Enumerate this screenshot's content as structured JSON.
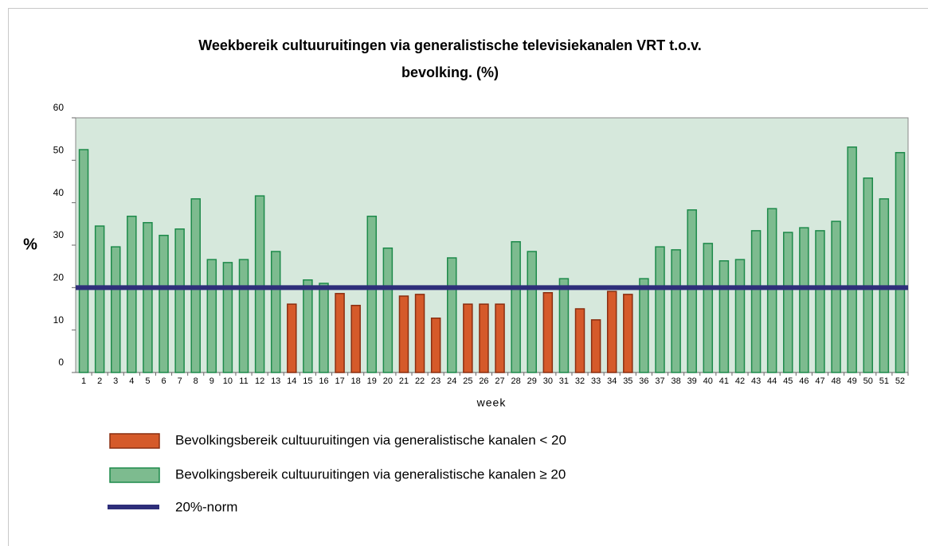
{
  "chart_data": {
    "type": "bar",
    "title": "Weekbereik cultuuruitingen via generalistische televisiekanalen VRT  t.o.v.",
    "subtitle": "bevolking. (%)",
    "x_label": "week",
    "y_label": "%",
    "categories": [
      "1",
      "2",
      "3",
      "4",
      "5",
      "6",
      "7",
      "8",
      "9",
      "10",
      "11",
      "12",
      "13",
      "14",
      "15",
      "16",
      "17",
      "18",
      "19",
      "20",
      "21",
      "22",
      "23",
      "24",
      "25",
      "26",
      "27",
      "28",
      "29",
      "30",
      "31",
      "32",
      "33",
      "34",
      "35",
      "36",
      "37",
      "38",
      "39",
      "40",
      "41",
      "42",
      "43",
      "44",
      "45",
      "46",
      "47",
      "48",
      "49",
      "50",
      "51",
      "52"
    ],
    "series": [
      {
        "name": "Bevolkingsbereik cultuuruitingen via generalistische kanalen < 20",
        "color": "#d55a2a",
        "values": [
          null,
          null,
          null,
          null,
          null,
          null,
          null,
          null,
          null,
          null,
          null,
          null,
          null,
          16.1,
          null,
          null,
          18.6,
          15.8,
          null,
          null,
          18,
          18.4,
          12.8,
          null,
          16.1,
          16.1,
          16.1,
          null,
          null,
          18.8,
          null,
          15,
          12.4,
          19.1,
          18.4,
          null,
          null,
          null,
          null,
          null,
          null,
          null,
          null,
          null,
          null,
          null,
          null,
          null,
          null,
          null,
          null,
          null
        ]
      },
      {
        "name": "Bevolkingsbereik cultuuruitingen via generalistische kanalen ≥ 20",
        "color": "#7dbb8f",
        "values": [
          52.5,
          34.5,
          29.6,
          36.8,
          35.3,
          32.3,
          33.8,
          40.9,
          26.6,
          25.9,
          26.6,
          41.6,
          28.5,
          null,
          21.8,
          21,
          null,
          null,
          36.8,
          29.3,
          null,
          null,
          null,
          27,
          null,
          null,
          null,
          30.8,
          28.5,
          null,
          22.1,
          null,
          null,
          null,
          null,
          22.1,
          29.6,
          28.9,
          38.3,
          30.4,
          26.3,
          26.6,
          33.4,
          38.6,
          33,
          34.1,
          33.4,
          35.6,
          53.1,
          45.8,
          40.9,
          51.8
        ]
      }
    ],
    "reference_line": {
      "name": "20%-norm",
      "value": 20,
      "color": "#2e2e7a"
    },
    "ylim": [
      0,
      60
    ],
    "yticks": [
      0,
      10,
      20,
      30,
      40,
      50,
      60
    ],
    "grid": false
  }
}
